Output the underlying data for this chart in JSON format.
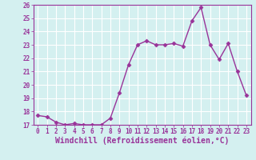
{
  "x": [
    0,
    1,
    2,
    3,
    4,
    5,
    6,
    7,
    8,
    9,
    10,
    11,
    12,
    13,
    14,
    15,
    16,
    17,
    18,
    19,
    20,
    21,
    22,
    23
  ],
  "y": [
    17.7,
    17.6,
    17.2,
    17.0,
    17.1,
    17.0,
    17.0,
    17.0,
    17.5,
    19.4,
    21.5,
    23.0,
    23.3,
    23.0,
    23.0,
    23.1,
    22.9,
    24.8,
    25.8,
    23.0,
    21.9,
    23.1,
    21.0,
    19.2
  ],
  "line_color": "#993399",
  "marker_color": "#993399",
  "bg_color": "#d4f0f0",
  "grid_color": "#ffffff",
  "xlabel": "Windchill (Refroidissement éolien,°C)",
  "ylim": [
    17,
    26
  ],
  "xlim": [
    -0.5,
    23.5
  ],
  "yticks": [
    17,
    18,
    19,
    20,
    21,
    22,
    23,
    24,
    25,
    26
  ],
  "xticks": [
    0,
    1,
    2,
    3,
    4,
    5,
    6,
    7,
    8,
    9,
    10,
    11,
    12,
    13,
    14,
    15,
    16,
    17,
    18,
    19,
    20,
    21,
    22,
    23
  ],
  "tick_fontsize": 5.5,
  "xlabel_fontsize": 7,
  "line_width": 1.0,
  "marker_size": 2.5
}
